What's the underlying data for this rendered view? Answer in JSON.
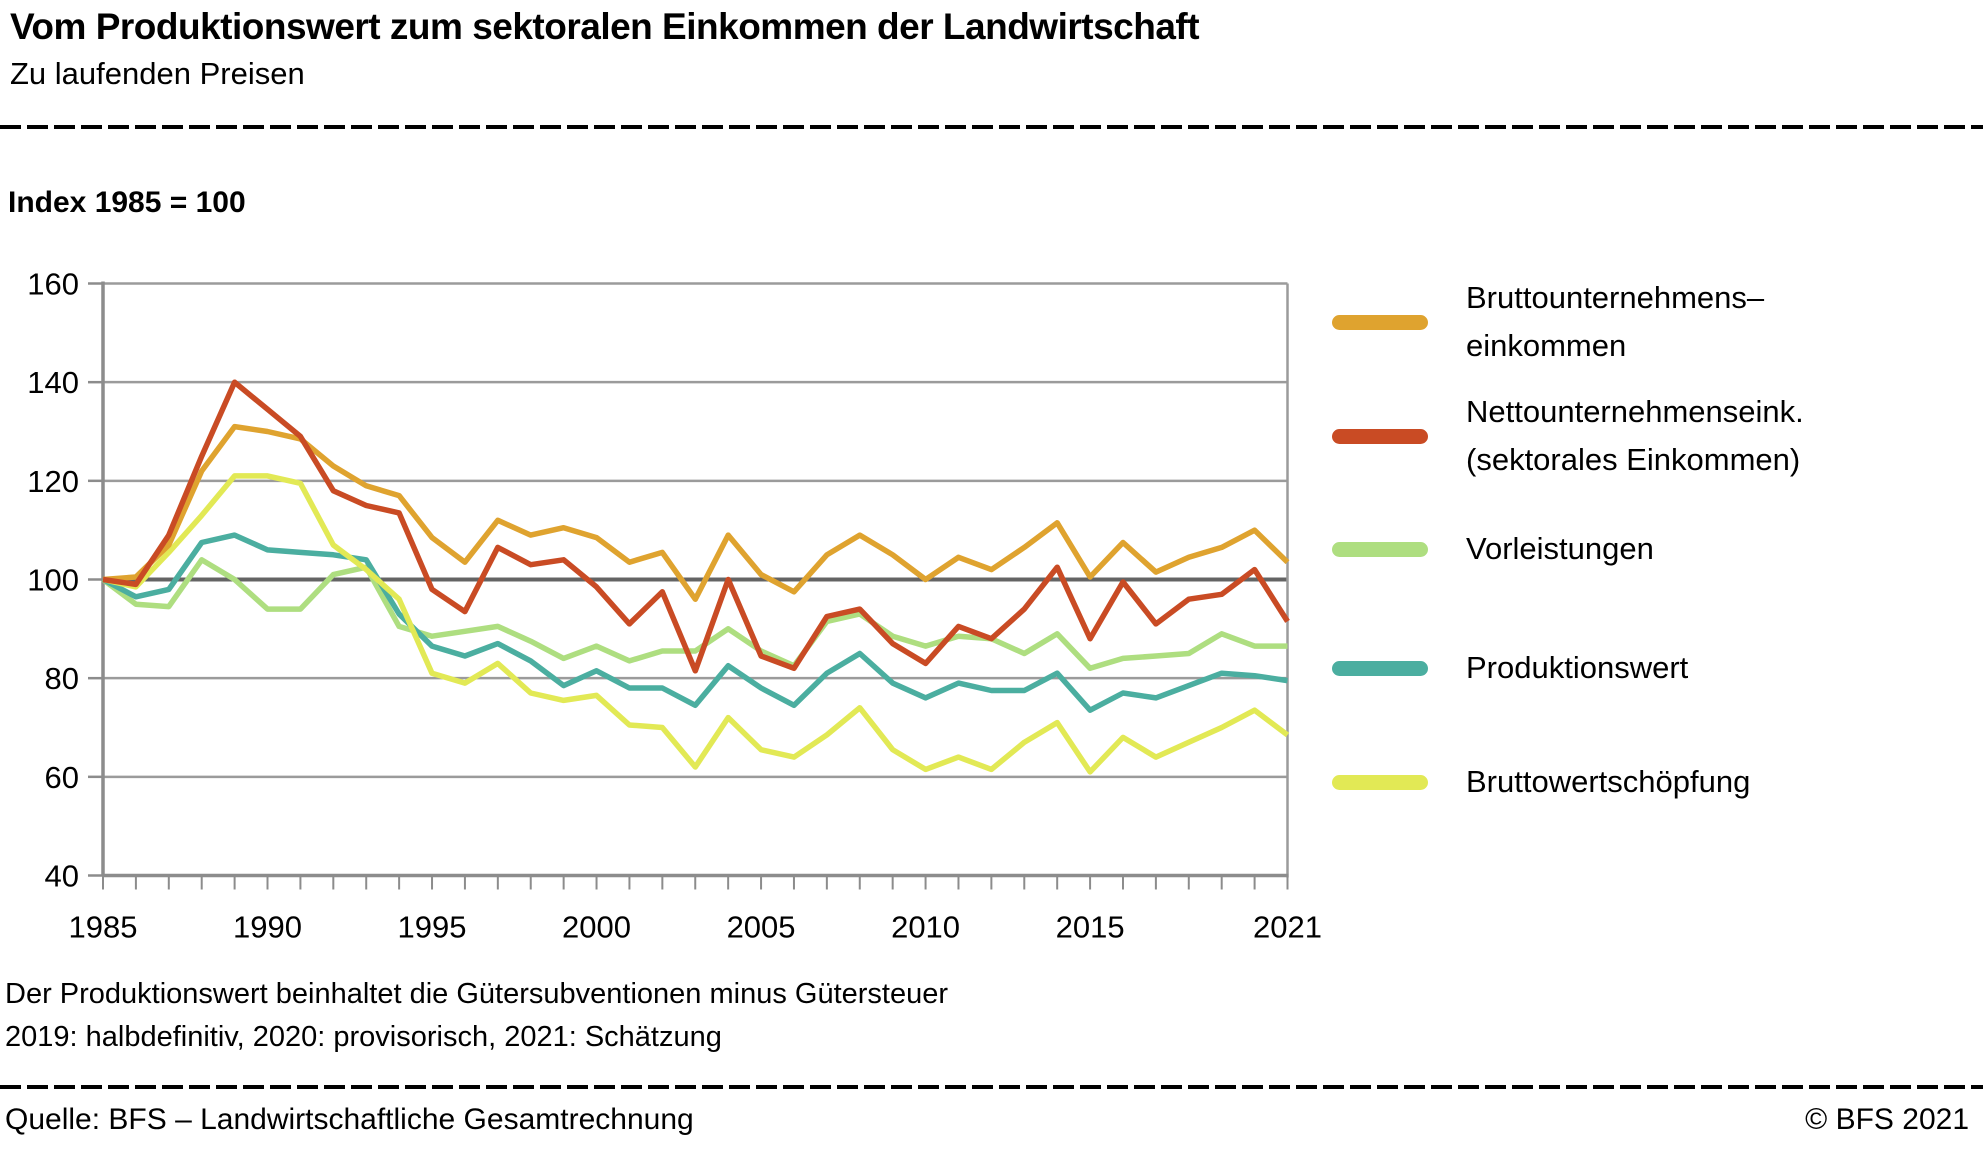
{
  "header": {
    "title": "Vom Produktionswert zum sektoralen Einkommen der Landwirtschaft",
    "subtitle": "Zu laufenden Preisen"
  },
  "index_label": "Index 1985 = 100",
  "chart_data": {
    "type": "line",
    "title": "Vom Produktionswert zum sektoralen Einkommen der Landwirtschaft",
    "subtitle": "Zu laufenden Preisen",
    "unit_note": "Index 1985 = 100",
    "x": [
      1985,
      1986,
      1987,
      1988,
      1989,
      1990,
      1991,
      1992,
      1993,
      1994,
      1995,
      1996,
      1997,
      1998,
      1999,
      2000,
      2001,
      2002,
      2003,
      2004,
      2005,
      2006,
      2007,
      2008,
      2009,
      2010,
      2011,
      2012,
      2013,
      2014,
      2015,
      2016,
      2017,
      2018,
      2019,
      2020,
      2021
    ],
    "x_tick_labels": [
      "1985",
      "1990",
      "1995",
      "2000",
      "2005",
      "2010",
      "2015",
      "2021"
    ],
    "x_tick_years": [
      1985,
      1990,
      1995,
      2000,
      2005,
      2010,
      2015,
      2021
    ],
    "ylim": [
      40,
      160
    ],
    "y_ticks": [
      40,
      60,
      80,
      100,
      120,
      140,
      160
    ],
    "reference_line": 100,
    "grid": true,
    "legend_position": "right",
    "series": [
      {
        "name": "Bruttounternehmens–\neinkommen",
        "color": "#DFA32F",
        "values": [
          100,
          100.5,
          107,
          122,
          131,
          130,
          128.5,
          123,
          119,
          117,
          108.5,
          103.5,
          112,
          109,
          110.5,
          108.5,
          103.5,
          105.5,
          96,
          109,
          101,
          97.5,
          105,
          109,
          105,
          100,
          104.5,
          102,
          106.5,
          111.5,
          100.5,
          107.5,
          101.5,
          104.5,
          106.5,
          110,
          103.5
        ]
      },
      {
        "name": "Nettounternehmenseink.\n(sektorales Einkommen)",
        "color": "#C94B24",
        "values": [
          100,
          99,
          109,
          125,
          140,
          134.5,
          129,
          118,
          115,
          113.5,
          98,
          93.5,
          106.5,
          103,
          104,
          98.5,
          91,
          97.5,
          81.5,
          100,
          84.5,
          82,
          92.5,
          94,
          87,
          83,
          90.5,
          88,
          94,
          102.5,
          88,
          99.5,
          91,
          96,
          97,
          102,
          91.5
        ]
      },
      {
        "name": "Vorleistungen",
        "color": "#AEDE80",
        "values": [
          100,
          95,
          94.5,
          104,
          100,
          94,
          94,
          101,
          102.5,
          90.5,
          88.5,
          89.5,
          90.5,
          87.5,
          84,
          86.5,
          83.5,
          85.5,
          85.5,
          90,
          85.5,
          82.5,
          91.5,
          93,
          88.5,
          86.5,
          88.5,
          88,
          85,
          89,
          82,
          84,
          84.5,
          85,
          89,
          86.5,
          86.5
        ]
      },
      {
        "name": "Produktionswert",
        "color": "#4BAEA0",
        "values": [
          100,
          96.5,
          98,
          107.5,
          109,
          106,
          105.5,
          105,
          104,
          93,
          86.5,
          84.5,
          87,
          83.5,
          78.5,
          81.5,
          78,
          78,
          74.5,
          82.5,
          78,
          74.5,
          81,
          85,
          79,
          76,
          79,
          77.5,
          77.5,
          81,
          73.5,
          77,
          76,
          78.5,
          81,
          80.5,
          79.5
        ]
      },
      {
        "name": "Bruttowertschöpfung",
        "color": "#E2E955",
        "values": [
          100,
          98.5,
          105.5,
          113,
          121,
          121,
          119.5,
          107,
          102,
          96,
          81,
          79,
          83,
          77,
          75.5,
          76.5,
          70.5,
          70,
          62,
          72,
          65.5,
          64,
          68.5,
          74,
          65.5,
          61.5,
          64,
          61.5,
          67,
          71,
          61,
          68,
          64,
          67,
          70,
          73.5,
          68.5
        ]
      }
    ],
    "style": {
      "grid_color": "#9B9B9B",
      "axis_color": "#8C8C8C",
      "reference_line_color": "#646464",
      "text_color": "#000000"
    }
  },
  "footnotes": {
    "line1": "Der Produktionswert beinhaltet die Gütersubventionen minus Gütersteuer",
    "line2": "2019: halbdefinitiv, 2020: provisorisch, 2021: Schätzung"
  },
  "footer": {
    "source": "Quelle: BFS – Landwirtschaftliche Gesamtrechnung",
    "copyright": "© BFS 2021"
  }
}
